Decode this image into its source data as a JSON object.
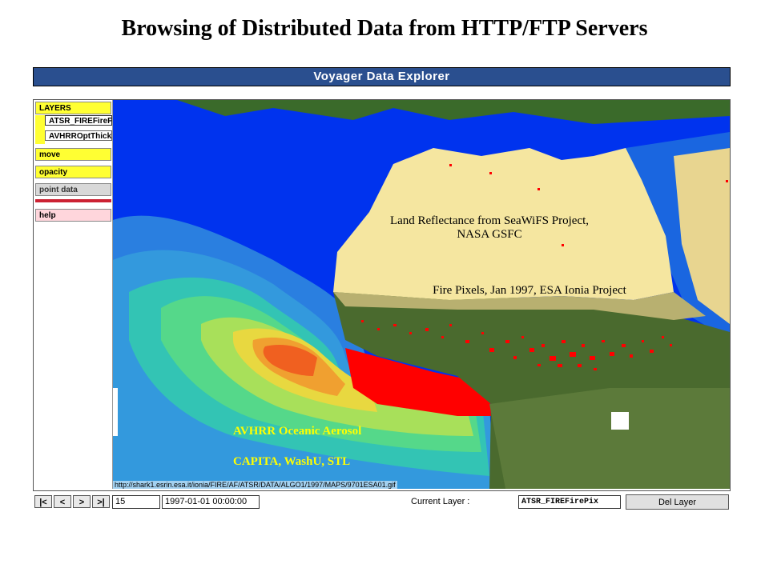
{
  "slide_title": "Browsing of Distributed Data from HTTP/FTP Servers",
  "app": {
    "title": "Voyager Data Explorer",
    "sidebar": {
      "layers_label": "LAYERS",
      "layers": [
        "ATSR_FIREFirePix",
        "AVHRROptThick"
      ],
      "buttons": {
        "move": "move",
        "opacity": "opacity",
        "point_data": "point data",
        "help": "help"
      }
    },
    "map": {
      "label_land": "Land Reflectance  from SeaWiFS Project, NASA GSFC",
      "label_fire": "Fire Pixels, Jan 1997, ESA Ionia Project",
      "label_aerosol": "AVHRR  Oceanic Aerosol",
      "label_capita": "CAPITA,  WashU, STL",
      "url": "http://shark1.esrin.esa.it/ionia/FIRE/AF/ATSR/DATA/ALGO1/1997/MAPS/9701ESA01.gif"
    },
    "toolbar": {
      "nav_first": "|<",
      "nav_prev": "<",
      "nav_next": ">",
      "nav_last": ">|",
      "frame_value": "15",
      "date_value": "1997-01-01 00:00:00",
      "current_layer_label": "Current Layer :",
      "current_layer_value": "ATSR_FIREFirePix",
      "del_layer": "Del Layer"
    }
  },
  "colors": {
    "titlebar": "#2a4f8f",
    "ocean": "#0033ee",
    "sand": "#f5e6a0",
    "vegetation": "#4a6a2e",
    "fire": "#ff0000",
    "aerosol_high": "#ff0000",
    "button_yellow": "#ffff33"
  }
}
